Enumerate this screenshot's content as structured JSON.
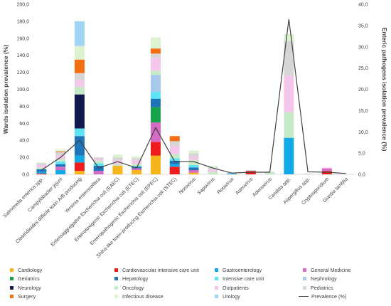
{
  "chart_data": {
    "type": "bar",
    "stacked": true,
    "ylabel": "Wards isolation prevalence (%)",
    "y2label": "Enteric pathogens isolation prevalence (%)",
    "ylim": [
      0,
      200
    ],
    "y2lim": [
      0,
      40
    ],
    "yticks": [
      "0,0",
      "20,0",
      "40,0",
      "60,0",
      "80,0",
      "100,0",
      "120,0",
      "140,0",
      "160,0",
      "180,0",
      "200,0"
    ],
    "y2ticks": [
      "0,0",
      "5,0",
      "10,0",
      "15,0",
      "20,0",
      "25,0",
      "30,0",
      "35,0",
      "40,0"
    ],
    "categories": [
      "Salmonella enterica spp.",
      "Campylobacter jejuni",
      "Clostridioides difficile toxin A/B producing",
      "Yersinia enterocolitica",
      "Enteroaggregative Escherichia coli (EAEC)",
      "Enterotoxigenic Escherichia coli (ETEC)",
      "Enteropathogenic Escherichia coli (EPEC)",
      "Shiha-like toxin-producing Escherichia coli (STEC)",
      "Norovirus",
      "Sapovirus",
      "Rotavirus",
      "Astrovirus",
      "Adenovirus",
      "Candida spp.",
      "Aspergillus spp.",
      "Cryptosporidium",
      "Giardia lamblia"
    ],
    "series": [
      {
        "name": "Cardiology",
        "color": "#f5b51b",
        "values": [
          0,
          0,
          4,
          0,
          10,
          5,
          22,
          0,
          2,
          0,
          0,
          0,
          0,
          0,
          0,
          0,
          0
        ]
      },
      {
        "name": "Cardiovascular intensive care unit",
        "color": "#ee1c1c",
        "values": [
          1,
          0,
          10,
          0,
          0,
          0,
          16,
          9,
          0,
          0,
          0,
          4,
          0,
          0,
          0,
          4,
          0
        ]
      },
      {
        "name": "Gastroenterology",
        "color": "#12a9e6",
        "values": [
          2,
          5,
          8,
          0,
          0,
          0,
          0,
          3,
          0,
          0,
          1,
          0,
          0,
          43,
          0,
          0,
          0
        ]
      },
      {
        "name": "General Medicine",
        "color": "#d66bc4",
        "values": [
          0,
          4,
          0,
          4,
          0,
          2,
          23,
          0,
          3,
          0,
          0,
          0,
          0,
          0,
          0,
          3,
          0
        ]
      },
      {
        "name": "Geriatrics",
        "color": "#16a34a",
        "values": [
          0,
          0,
          0,
          0,
          0,
          0,
          18,
          0,
          0,
          0,
          0,
          0,
          0,
          0,
          0,
          0,
          0
        ]
      },
      {
        "name": "Hepatology",
        "color": "#1d74b8",
        "values": [
          3,
          3,
          23,
          6,
          0,
          2,
          10,
          4,
          3,
          0,
          0,
          0,
          0,
          0,
          0,
          0,
          0
        ]
      },
      {
        "name": "Intensive care unit",
        "color": "#5ee3f2",
        "values": [
          0,
          3,
          9,
          3,
          0,
          1,
          8,
          3,
          3,
          0,
          0,
          0,
          0,
          0,
          0,
          0,
          0
        ]
      },
      {
        "name": "Nephrology",
        "color": "#a8c8ec",
        "values": [
          0,
          0,
          0,
          0,
          0,
          0,
          20,
          0,
          0,
          0,
          0,
          0,
          0,
          0,
          0,
          0,
          0
        ]
      },
      {
        "name": "Neurology",
        "color": "#13194b",
        "values": [
          0,
          0,
          40,
          0,
          0,
          0,
          0,
          0,
          0,
          0,
          0,
          0,
          0,
          0,
          0,
          0,
          0
        ]
      },
      {
        "name": "Oncology",
        "color": "#c6eac6",
        "values": [
          2,
          3,
          9,
          3,
          2,
          2,
          5,
          5,
          6,
          3,
          0,
          0,
          2,
          30,
          0,
          0,
          0
        ]
      },
      {
        "name": "Outpatients",
        "color": "#f5c6ec",
        "values": [
          3,
          4,
          8,
          2,
          4,
          5,
          15,
          9,
          4,
          3,
          0,
          0,
          0,
          43,
          0,
          1,
          0
        ]
      },
      {
        "name": "Pediatrics",
        "color": "#d6d6d6",
        "values": [
          2,
          4,
          8,
          2,
          4,
          2,
          5,
          6,
          4,
          2,
          1,
          1,
          1,
          41,
          1,
          0,
          0
        ]
      },
      {
        "name": "Surgery",
        "color": "#f46f12",
        "values": [
          0,
          1,
          16,
          0,
          0,
          0,
          6,
          6,
          0,
          0,
          0,
          0,
          0,
          0,
          0,
          0,
          0
        ]
      },
      {
        "name": "Infectious disease",
        "color": "#ddf2cf",
        "values": [
          1,
          2,
          16,
          0,
          3,
          2,
          13,
          0,
          3,
          2,
          0,
          0,
          0,
          8,
          0,
          0,
          0
        ]
      },
      {
        "name": "Urology",
        "color": "#9fd5f3",
        "values": [
          0,
          0,
          29,
          0,
          0,
          0,
          0,
          0,
          0,
          0,
          0,
          0,
          0,
          0,
          0,
          0,
          0
        ]
      }
    ],
    "line": {
      "name": "Prevalence (%)",
      "axis": "y2",
      "color": "#404040",
      "values": [
        1.0,
        4.0,
        8.0,
        1.5,
        3.0,
        1.5,
        11.0,
        3.0,
        3.0,
        1.5,
        0.3,
        0.5,
        0.5,
        36.5,
        0.6,
        0.5,
        0.2
      ]
    },
    "legend_position": "bottom"
  }
}
